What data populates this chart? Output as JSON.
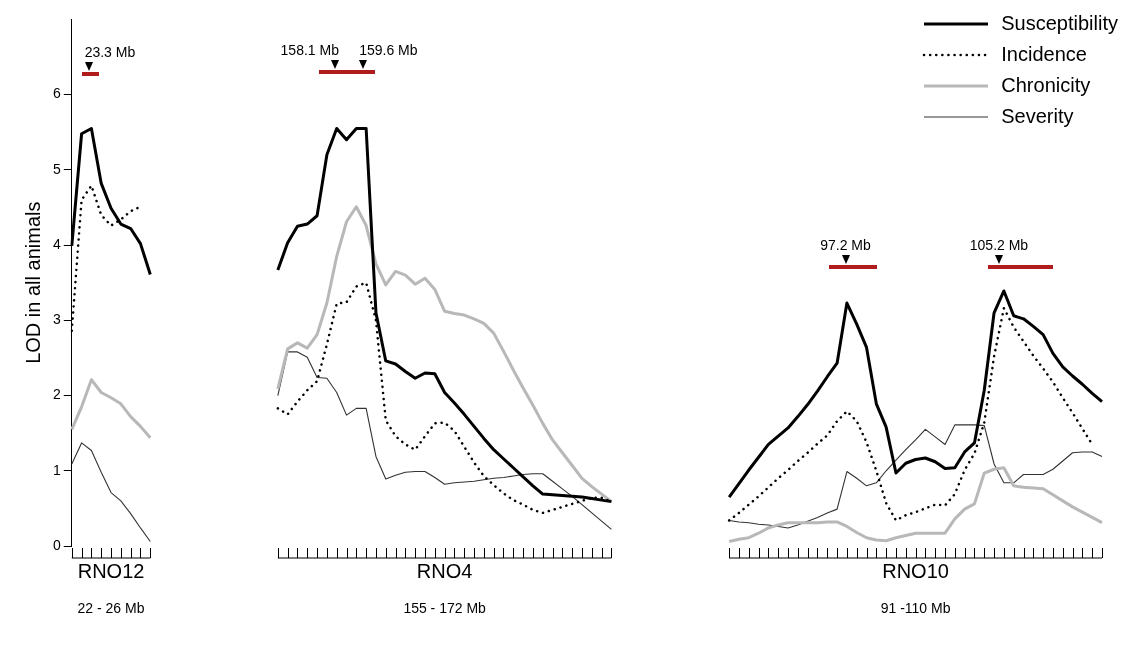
{
  "chart_data": {
    "type": "line",
    "ylabel": "LOD in all animals",
    "ylim": [
      0,
      7
    ],
    "yticks": [
      0,
      1,
      2,
      3,
      4,
      5,
      6
    ],
    "legend": "top right",
    "categories": [
      null,
      null,
      null,
      null,
      "RNO12",
      null,
      null,
      null,
      null,
      null,
      null,
      null,
      null,
      null,
      null,
      null,
      null,
      null,
      null,
      null,
      null,
      null,
      null,
      null,
      null,
      null,
      null,
      null,
      null,
      null,
      null,
      null,
      null,
      null,
      null,
      null,
      null,
      null,
      "RNO4",
      null,
      null,
      null,
      null,
      null,
      null,
      null,
      null,
      null,
      null,
      null,
      null,
      null,
      null,
      null,
      null,
      null,
      null,
      null,
      null,
      null,
      null,
      null,
      null,
      null,
      null,
      null,
      null,
      null,
      null,
      null,
      null,
      null,
      null,
      null,
      null,
      null,
      null,
      null,
      null,
      null,
      null,
      null,
      null,
      null,
      null,
      null,
      "RNO10",
      null,
      null,
      null,
      null,
      null,
      null,
      null,
      null,
      null,
      null,
      null,
      null,
      null,
      null,
      null,
      null,
      null,
      null,
      null
    ],
    "annotations": [
      "23.3 Mb",
      "158.1 Mb",
      "159.6 Mb",
      "97.2 Mb",
      "105.2 Mb",
      "22 - 26 Mb",
      "155 - 172 Mb",
      "91 -110 Mb"
    ],
    "series": [
      {
        "name": "Susceptibility",
        "color": "#000000",
        "line_style": "solid",
        "values": [
          3.99,
          5.48,
          5.55,
          4.82,
          4.49,
          4.28,
          4.22,
          4.02,
          3.61,
          null,
          null,
          null,
          null,
          null,
          null,
          null,
          null,
          null,
          null,
          null,
          null,
          3.67,
          4.03,
          4.25,
          4.28,
          4.39,
          5.2,
          5.55,
          5.4,
          5.55,
          5.55,
          3.1,
          2.46,
          2.42,
          2.32,
          2.23,
          2.3,
          2.29,
          2.04,
          1.9,
          1.75,
          1.59,
          1.43,
          1.28,
          1.16,
          1.04,
          0.92,
          0.8,
          0.69,
          0.68,
          0.67,
          0.66,
          0.65,
          0.63,
          0.61,
          0.59,
          null,
          null,
          null,
          null,
          null,
          null,
          null,
          null,
          null,
          null,
          null,
          0.65,
          0.83,
          1.01,
          1.18,
          1.35,
          1.46,
          1.57,
          1.72,
          1.88,
          2.06,
          2.25,
          2.43,
          3.23,
          2.95,
          2.64,
          1.89,
          1.58,
          0.97,
          1.1,
          1.15,
          1.17,
          1.12,
          1.03,
          1.04,
          1.25,
          1.37,
          2.07,
          3.1,
          3.39,
          3.06,
          3.02,
          2.92,
          2.81,
          2.56,
          2.38,
          2.26,
          2.15,
          2.03,
          1.92
        ]
      },
      {
        "name": "Incidence",
        "color": "#000000",
        "line_style": "dotted",
        "values": [
          2.86,
          4.6,
          4.79,
          4.4,
          4.26,
          4.34,
          4.45,
          4.51,
          null,
          null,
          null,
          null,
          null,
          null,
          null,
          null,
          null,
          null,
          null,
          null,
          null,
          1.83,
          1.75,
          1.92,
          2.07,
          2.19,
          2.68,
          3.22,
          3.24,
          3.45,
          3.5,
          3.0,
          1.67,
          1.46,
          1.35,
          1.28,
          1.46,
          1.63,
          1.64,
          1.53,
          1.32,
          1.11,
          0.93,
          0.81,
          0.7,
          0.61,
          0.55,
          0.48,
          0.44,
          0.48,
          0.52,
          0.56,
          0.6,
          0.64,
          0.64,
          0.59,
          null,
          null,
          null,
          null,
          null,
          null,
          null,
          null,
          null,
          null,
          null,
          0.34,
          0.44,
          0.55,
          0.66,
          0.78,
          0.9,
          1.01,
          1.13,
          1.24,
          1.36,
          1.47,
          1.66,
          1.79,
          1.66,
          1.38,
          1.0,
          0.57,
          0.34,
          0.41,
          0.45,
          0.5,
          0.55,
          0.54,
          0.69,
          1.01,
          1.23,
          1.64,
          2.52,
          3.16,
          2.91,
          2.72,
          2.53,
          2.36,
          2.18,
          1.97,
          1.77,
          1.56,
          1.35,
          null
        ]
      },
      {
        "name": "Chronicity",
        "color": "#b8b8b8",
        "line_style": "solid",
        "values": [
          1.55,
          1.85,
          2.21,
          2.04,
          1.97,
          1.89,
          1.72,
          1.59,
          1.44,
          null,
          null,
          null,
          null,
          null,
          null,
          null,
          null,
          null,
          null,
          null,
          null,
          2.09,
          2.62,
          2.7,
          2.63,
          2.81,
          3.23,
          3.85,
          4.31,
          4.51,
          4.26,
          3.75,
          3.47,
          3.65,
          3.6,
          3.48,
          3.56,
          3.41,
          3.12,
          3.09,
          3.07,
          3.02,
          2.96,
          2.83,
          2.59,
          2.34,
          2.1,
          1.87,
          1.63,
          1.41,
          1.24,
          1.07,
          0.9,
          0.79,
          0.69,
          0.59,
          null,
          null,
          null,
          null,
          null,
          null,
          null,
          null,
          null,
          null,
          null,
          0.06,
          0.09,
          0.11,
          0.17,
          0.24,
          0.28,
          0.31,
          0.31,
          0.31,
          0.31,
          0.32,
          0.32,
          0.26,
          0.18,
          0.11,
          0.08,
          0.07,
          0.11,
          0.14,
          0.17,
          0.17,
          0.17,
          0.17,
          0.36,
          0.49,
          0.56,
          0.97,
          1.02,
          1.04,
          0.8,
          0.78,
          0.77,
          0.76,
          0.68,
          0.6,
          0.52,
          0.45,
          0.38,
          0.31
        ]
      },
      {
        "name": "Severity",
        "color": "#333333",
        "line_style": "solid",
        "values": [
          1.09,
          1.37,
          1.27,
          0.98,
          0.71,
          0.6,
          0.43,
          0.24,
          0.06,
          null,
          null,
          null,
          null,
          null,
          null,
          null,
          null,
          null,
          null,
          null,
          null,
          2.0,
          2.58,
          2.58,
          2.51,
          2.24,
          2.23,
          2.04,
          1.74,
          1.83,
          1.83,
          1.19,
          0.89,
          0.94,
          0.98,
          0.99,
          0.99,
          0.91,
          0.82,
          0.84,
          0.85,
          0.86,
          0.88,
          0.9,
          0.91,
          0.93,
          0.95,
          0.96,
          0.96,
          0.86,
          0.76,
          0.66,
          0.55,
          0.44,
          0.33,
          0.22,
          null,
          null,
          null,
          null,
          null,
          null,
          null,
          null,
          null,
          null,
          null,
          0.34,
          0.32,
          0.31,
          0.29,
          0.28,
          0.26,
          0.24,
          0.28,
          0.33,
          0.38,
          0.44,
          0.49,
          0.99,
          0.9,
          0.8,
          0.84,
          1.0,
          1.14,
          1.28,
          1.41,
          1.55,
          1.45,
          1.35,
          1.61,
          1.61,
          1.61,
          1.6,
          1.09,
          0.84,
          0.84,
          0.95,
          0.95,
          0.95,
          1.02,
          1.13,
          1.24,
          1.25,
          1.25,
          1.19
        ]
      }
    ]
  }
}
